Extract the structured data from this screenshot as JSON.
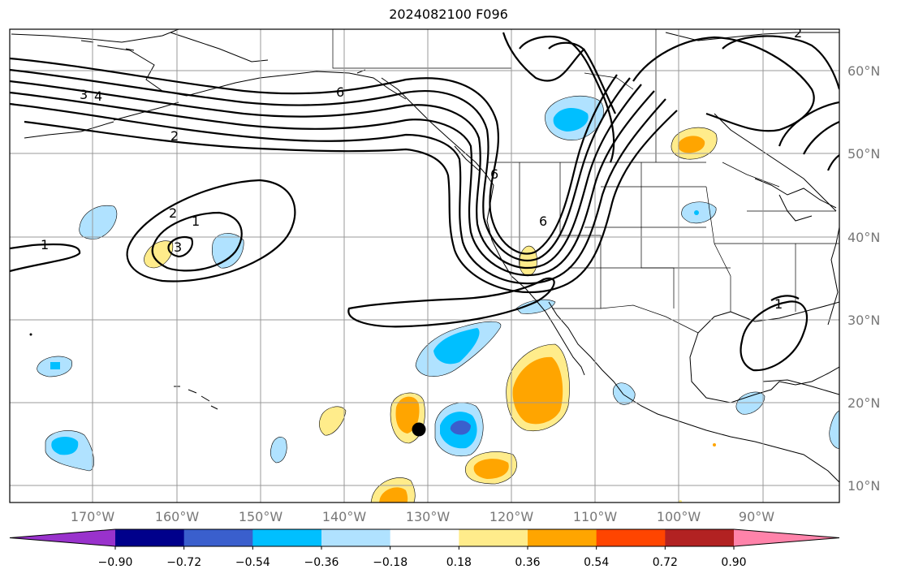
{
  "title": "2024082100 F096",
  "map": {
    "lon_labels": [
      "170°W",
      "160°W",
      "150°W",
      "140°W",
      "130°W",
      "120°W",
      "110°W",
      "100°W",
      "90°W"
    ],
    "lat_labels": [
      "60°N",
      "50°N",
      "40°N",
      "30°N",
      "20°N",
      "10°N"
    ],
    "contour_labels": [
      "3",
      "4",
      "6",
      "2",
      "1",
      "2",
      "3",
      "1",
      "6",
      "6",
      "1",
      "2"
    ],
    "marker": "storm-center-dot"
  },
  "colorbar": {
    "colors": [
      "#9932cc",
      "#00008b",
      "#3a5fcd",
      "#00bfff",
      "#b0e2ff",
      "#ffffff",
      "#ffec8b",
      "#ffa500",
      "#ff4500",
      "#b22222",
      "#ff83aa"
    ],
    "ticks": [
      "−0.90",
      "−0.72",
      "−0.54",
      "−0.36",
      "−0.18",
      "0.18",
      "0.36",
      "0.54",
      "0.72",
      "0.90"
    ]
  }
}
